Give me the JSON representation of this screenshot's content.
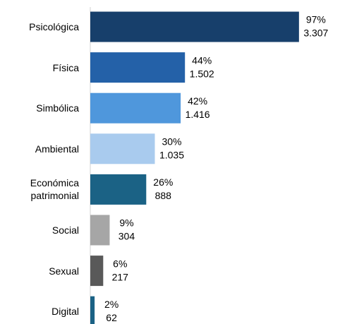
{
  "chart_data": {
    "type": "bar",
    "orientation": "horizontal",
    "categories": [
      "Psicológica",
      "Física",
      "Simbólica",
      "Ambiental",
      "Económica patrimonial",
      "Social",
      "Sexual",
      "Digital"
    ],
    "values": [
      97,
      44,
      42,
      30,
      26,
      9,
      6,
      2
    ],
    "value_labels": [
      "97%",
      "44%",
      "42%",
      "30%",
      "26%",
      "9%",
      "6%",
      "2%"
    ],
    "counts": [
      3307,
      1502,
      1416,
      1035,
      888,
      304,
      217,
      62
    ],
    "count_labels": [
      "3.307",
      "1.502",
      "1.416",
      "1.035",
      "888",
      "304",
      "217",
      "62"
    ],
    "colors": [
      "#173f6b",
      "#2461a8",
      "#4f97dc",
      "#a9cbee",
      "#1b6285",
      "#a6a6a6",
      "#595959",
      "#1b6285"
    ]
  }
}
